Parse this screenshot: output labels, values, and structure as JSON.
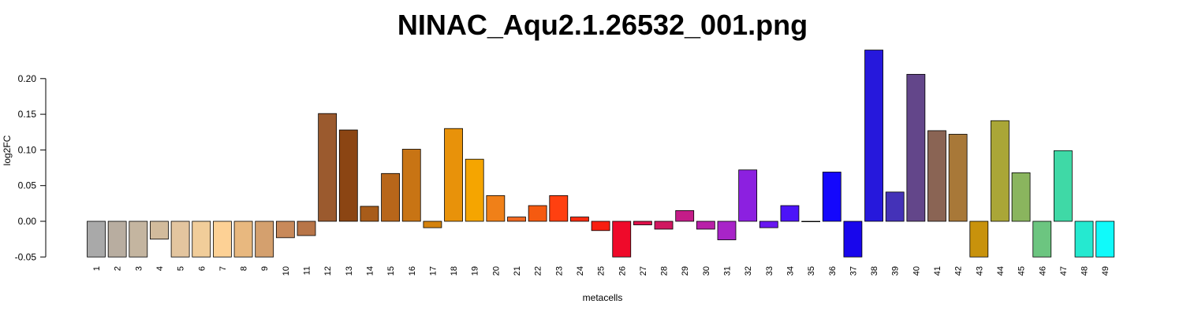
{
  "chart_data": {
    "type": "bar",
    "title": "NINAC_Aqu2.1.26532_001.png",
    "xlabel": "metacells",
    "ylabel": "log2FC",
    "ylim": [
      -0.05,
      0.24
    ],
    "yticks": [
      "-0.05",
      "0.00",
      "0.05",
      "0.10",
      "0.15",
      "0.20"
    ],
    "ytick_values": [
      -0.05,
      0.0,
      0.05,
      0.1,
      0.15,
      0.2
    ],
    "categories": [
      "1",
      "2",
      "3",
      "4",
      "5",
      "6",
      "7",
      "8",
      "9",
      "10",
      "11",
      "12",
      "13",
      "14",
      "15",
      "16",
      "17",
      "18",
      "19",
      "20",
      "21",
      "22",
      "23",
      "24",
      "25",
      "26",
      "27",
      "28",
      "29",
      "30",
      "31",
      "32",
      "33",
      "34",
      "35",
      "36",
      "37",
      "38",
      "39",
      "40",
      "41",
      "42",
      "43",
      "44",
      "45",
      "46",
      "47",
      "48",
      "49"
    ],
    "values": [
      -0.05,
      -0.05,
      -0.05,
      -0.025,
      -0.05,
      -0.05,
      -0.05,
      -0.05,
      -0.05,
      -0.023,
      -0.02,
      0.151,
      0.128,
      0.021,
      0.067,
      0.101,
      -0.009,
      0.13,
      0.087,
      0.036,
      0.006,
      0.022,
      0.036,
      0.006,
      -0.013,
      -0.05,
      -0.005,
      -0.011,
      0.015,
      -0.011,
      -0.026,
      0.072,
      -0.009,
      0.022,
      0.0,
      0.069,
      -0.05,
      0.24,
      0.041,
      0.206,
      0.127,
      0.122,
      -0.05,
      0.141,
      0.068,
      -0.05,
      0.099,
      -0.05,
      -0.05
    ],
    "colors": [
      "#a9a9a9",
      "#b8ada0",
      "#c4b5a0",
      "#d2bb9c",
      "#e3c59f",
      "#f1cd9a",
      "#fdd195",
      "#e8b87f",
      "#d4a06e",
      "#c8895a",
      "#b87548",
      "#9b5a2e",
      "#8b4513",
      "#a85c1a",
      "#b8661a",
      "#c87414",
      "#d4820e",
      "#e8920a",
      "#f5a500",
      "#f08018",
      "#f06820",
      "#f55a10",
      "#ff4010",
      "#f82c10",
      "#f81e10",
      "#ef0a2a",
      "#e0104a",
      "#d01860",
      "#c41c88",
      "#b820a8",
      "#a824c8",
      "#8c20e0",
      "#6818f0",
      "#4c14f8",
      "#3010fc",
      "#1408fc",
      "#1806ec",
      "#2618dc",
      "#4432b8",
      "#63468a",
      "#8a6454",
      "#a87838",
      "#c8920c",
      "#aaa637",
      "#8ab55e",
      "#6cc580",
      "#3fd9a6",
      "#25e9d0",
      "#10fafa"
    ],
    "grid": false,
    "legend": "none"
  }
}
